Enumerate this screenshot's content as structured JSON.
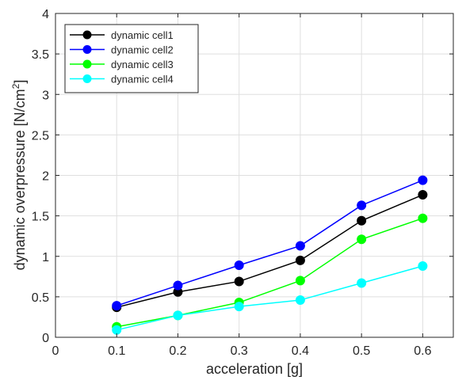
{
  "chart_data": {
    "type": "line",
    "title": "",
    "xlabel": "acceleration [g]",
    "ylabel_main": "dynamic overpressure [N/cm",
    "ylabel_sup": "2",
    "ylabel_close": "]",
    "xlim": [
      0,
      0.65
    ],
    "ylim": [
      0,
      4
    ],
    "xticks": [
      0,
      0.1,
      0.2,
      0.3,
      0.4,
      0.5,
      0.6
    ],
    "xtick_labels": [
      "0",
      "0.1",
      "0.2",
      "0.3",
      "0.4",
      "0.5",
      "0.6"
    ],
    "yticks": [
      0,
      0.5,
      1,
      1.5,
      2,
      2.5,
      3,
      3.5,
      4
    ],
    "ytick_labels": [
      "0",
      "0.5",
      "1",
      "1.5",
      "2",
      "2.5",
      "3",
      "3.5",
      "4"
    ],
    "grid": true,
    "legend_position": "top-left",
    "x": [
      0.1,
      0.2,
      0.3,
      0.4,
      0.5,
      0.6
    ],
    "series": [
      {
        "name": "dynamic cell1",
        "color": "#000000",
        "values": [
          0.37,
          0.56,
          0.69,
          0.95,
          1.44,
          1.76
        ]
      },
      {
        "name": "dynamic cell2",
        "color": "#0000ff",
        "values": [
          0.39,
          0.64,
          0.89,
          1.13,
          1.63,
          1.94
        ]
      },
      {
        "name": "dynamic cell3",
        "color": "#00ff00",
        "values": [
          0.13,
          0.27,
          0.43,
          0.7,
          1.21,
          1.47
        ]
      },
      {
        "name": "dynamic cell4",
        "color": "#00ffff",
        "values": [
          0.09,
          0.27,
          0.38,
          0.46,
          0.67,
          0.88
        ]
      }
    ]
  }
}
